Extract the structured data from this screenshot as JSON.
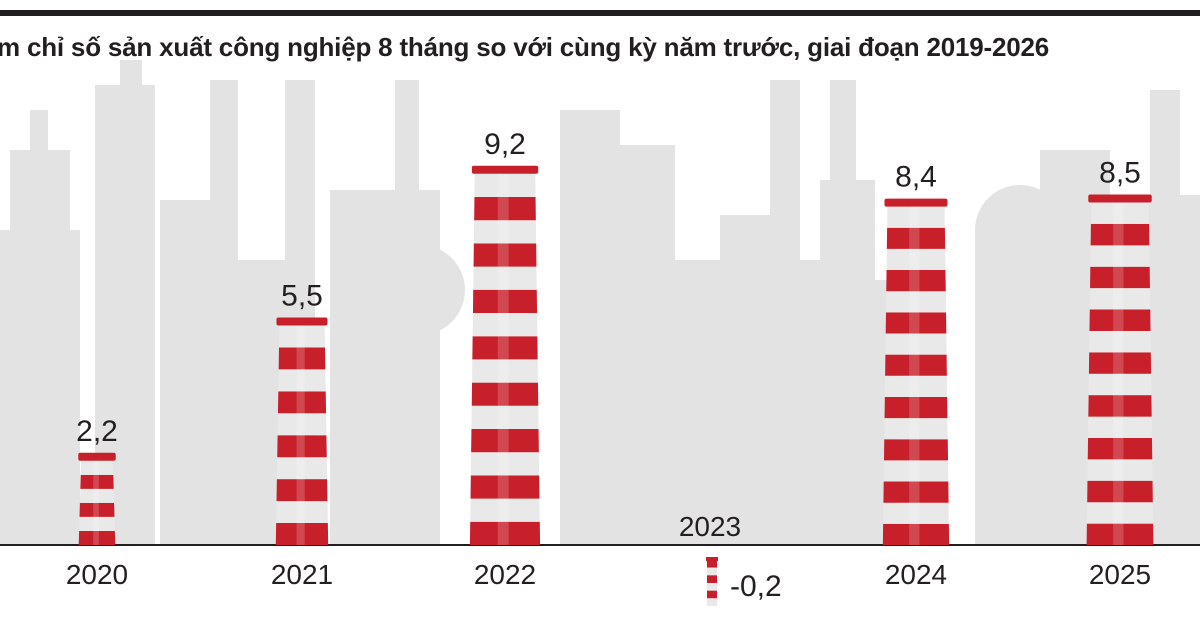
{
  "title": "m chỉ số sản xuất công nghiệp 8 tháng so với cùng kỳ năm trước, giai đoạn 2019-2026",
  "colors": {
    "stripe_red": "#c8202a",
    "stripe_light": "#e9e9e9",
    "background_skyline": "#e3e3e3",
    "text": "#231f20"
  },
  "chart_data": {
    "type": "bar",
    "categories": [
      "2020",
      "2021",
      "2022",
      "2023",
      "2024",
      "2025"
    ],
    "values": [
      2.2,
      5.5,
      9.2,
      -0.2,
      8.4,
      8.5
    ],
    "value_labels": [
      "2,2",
      "5,5",
      "9,2",
      "-0,2",
      "8,4",
      "8,5"
    ],
    "title": "m chỉ số sản xuất công nghiệp 8 tháng so với cùng kỳ năm trước, giai đoạn 2019-2026",
    "xlabel": "",
    "ylabel": "",
    "ylim": [
      -1,
      10
    ],
    "grid": false,
    "legend": "none",
    "bar_style": "striped-chimney"
  }
}
